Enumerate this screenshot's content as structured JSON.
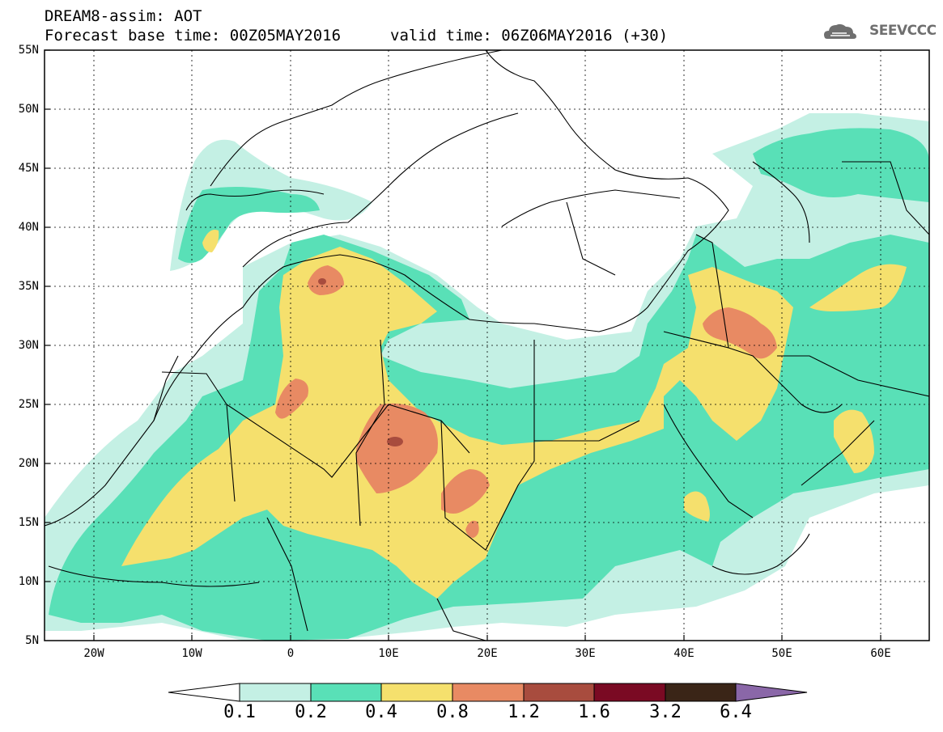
{
  "header": {
    "title": "DREAM8-assim: AOT",
    "base_time": "Forecast base time: 00Z05MAY2016",
    "valid_time": "valid time: 06Z06MAY2016 (+30)"
  },
  "logo": {
    "text": "SEEVCCC",
    "icon": "cloud-logo-icon",
    "color": "#6f6f6f"
  },
  "map": {
    "lat_labels": [
      "55N",
      "50N",
      "45N",
      "40N",
      "35N",
      "30N",
      "25N",
      "20N",
      "15N",
      "10N",
      "5N"
    ],
    "lon_labels": [
      "20W",
      "10W",
      "0",
      "10E",
      "20E",
      "30E",
      "40E",
      "50E",
      "60E"
    ],
    "lat_range": [
      5,
      55
    ],
    "lon_range": [
      -25,
      65
    ]
  },
  "legend": {
    "labels": [
      "0.1",
      "0.2",
      "0.4",
      "0.8",
      "1.2",
      "1.6",
      "3.2",
      "6.4"
    ],
    "colors": [
      "#ffffff",
      "#c4f0e4",
      "#59e0b7",
      "#f5e06d",
      "#e88a63",
      "#a84c3e",
      "#7a0a23",
      "#3a2517",
      "#8a67a8"
    ]
  }
}
